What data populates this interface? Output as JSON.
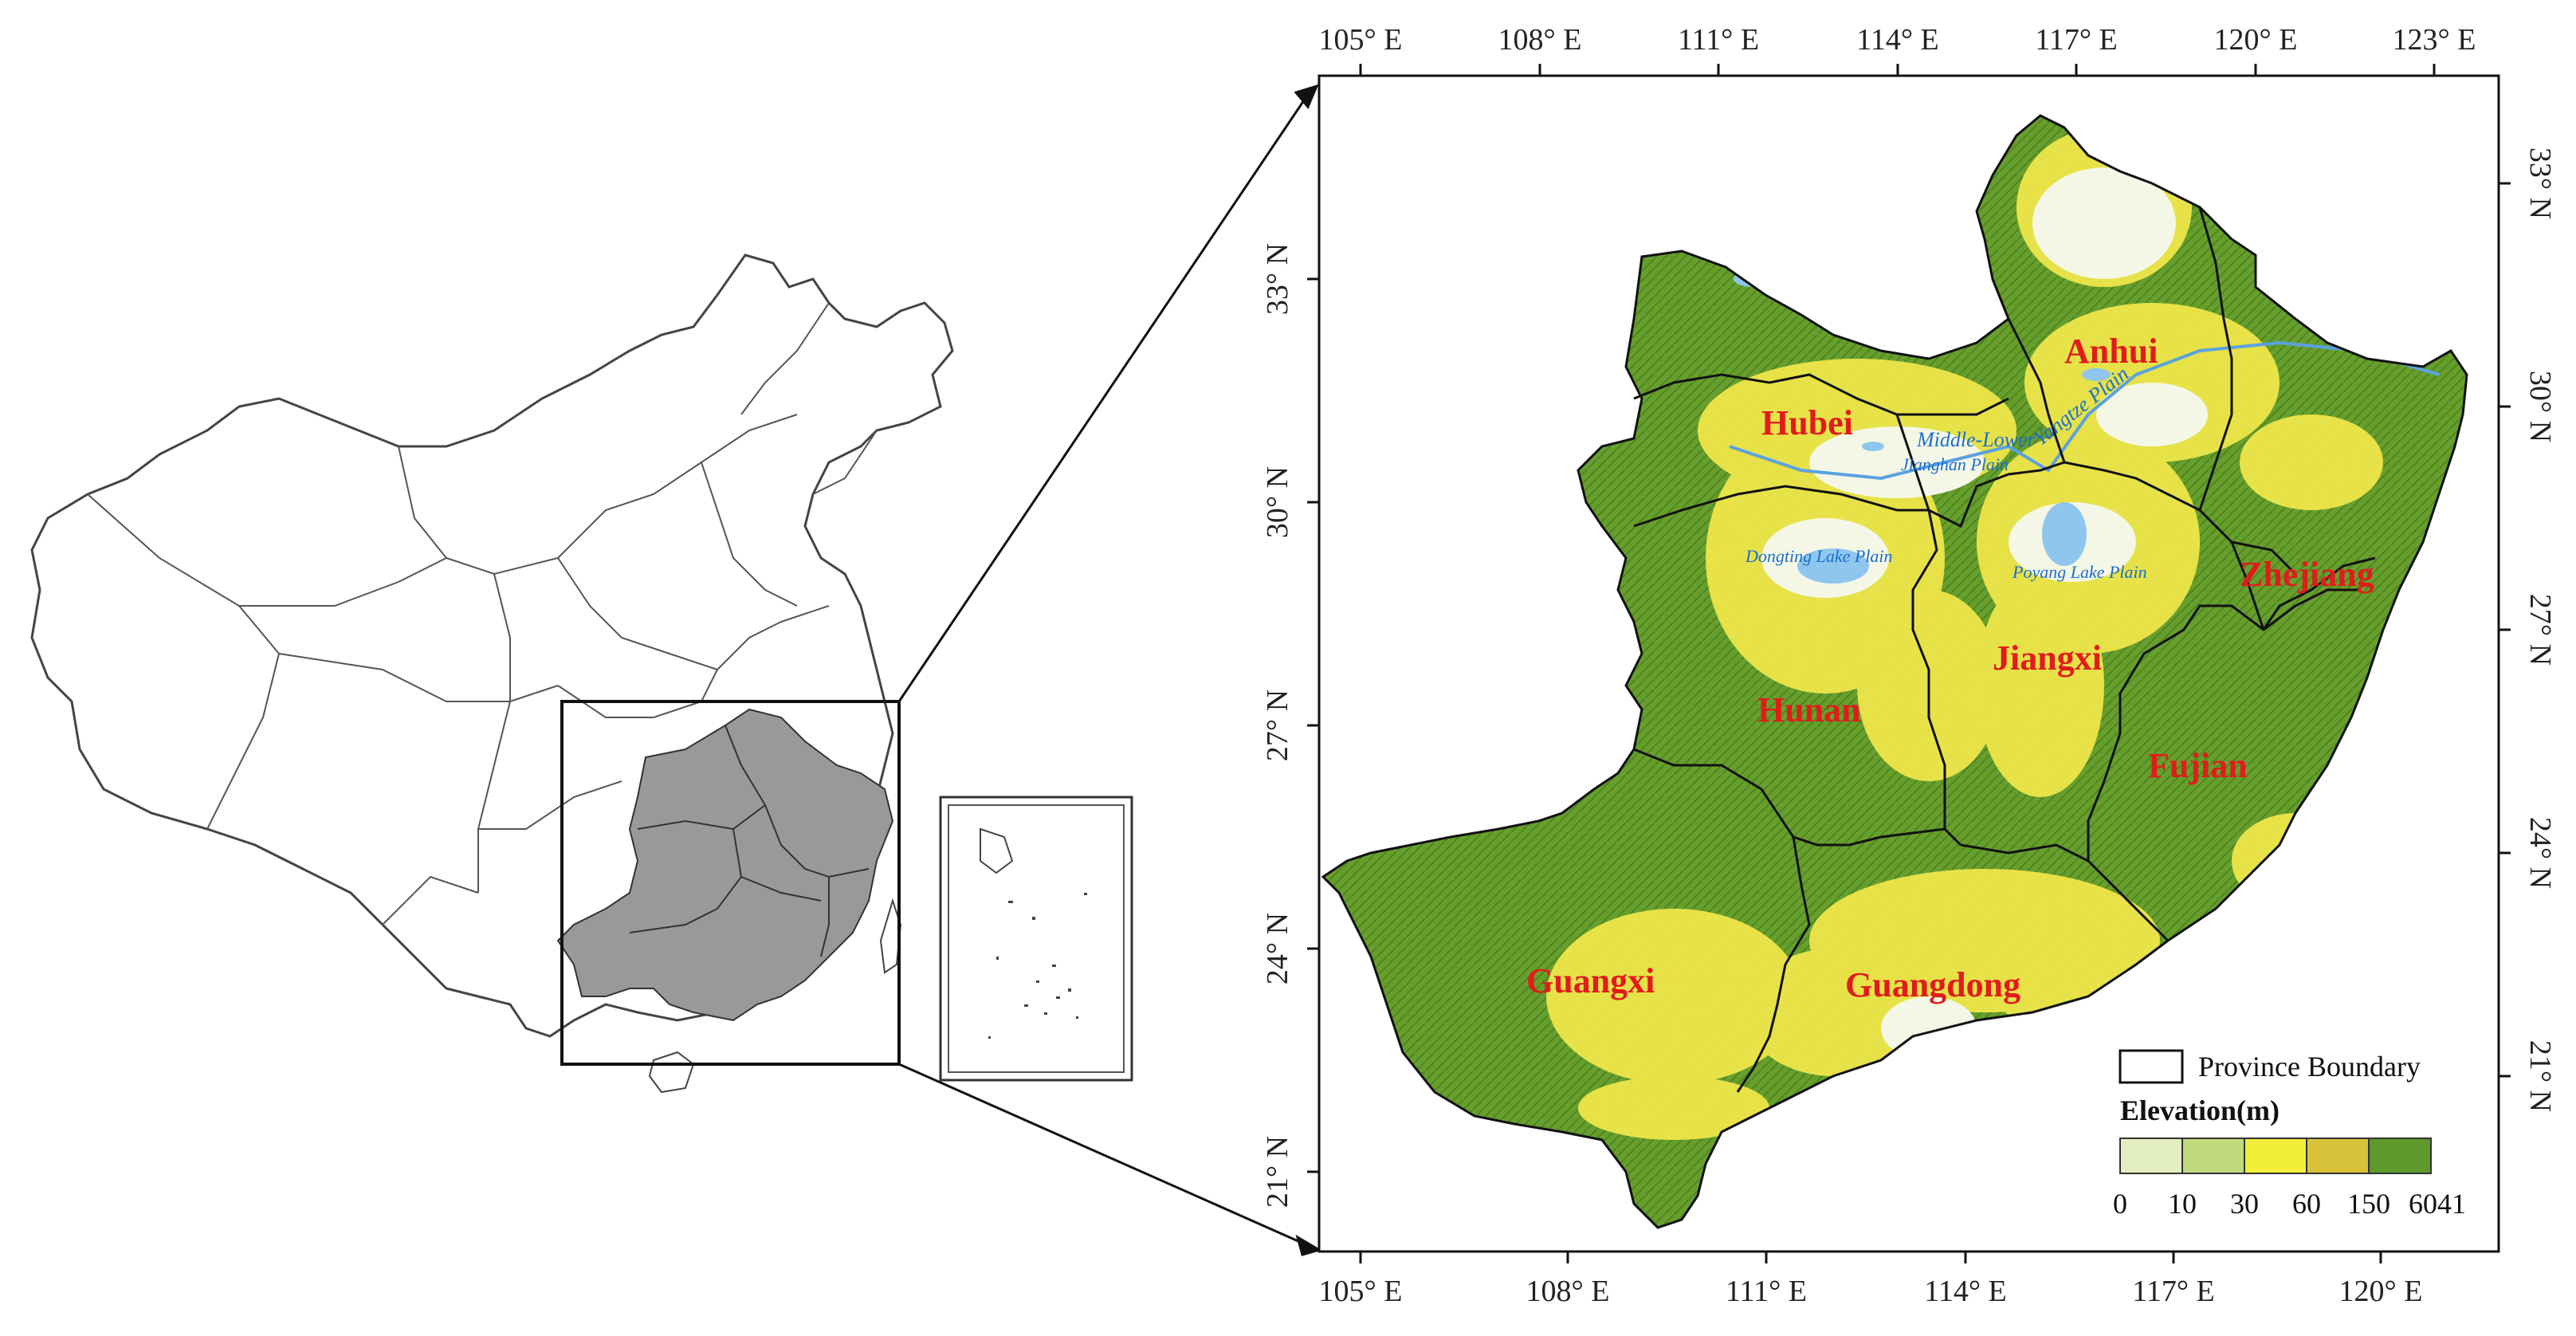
{
  "top_ticks": [
    "105° E",
    "108° E",
    "111° E",
    "114° E",
    "117° E",
    "120° E",
    "123° E"
  ],
  "bottom_ticks": [
    "105° E",
    "108° E",
    "111° E",
    "114° E",
    "117° E",
    "120° E"
  ],
  "left_ticks": [
    "33° N",
    "30° N",
    "27° N",
    "24° N",
    "21° N"
  ],
  "right_ticks": [
    "33° N",
    "30° N",
    "27° N",
    "24° N",
    "21° N"
  ],
  "provinces": {
    "hubei": "Hubei",
    "anhui": "Anhui",
    "hunan": "Hunan",
    "jiangxi": "Jiangxi",
    "zhejiang": "Zhejiang",
    "fujian": "Fujian",
    "guangxi": "Guangxi",
    "guangdong": "Guangdong"
  },
  "plains": {
    "middle_lower": "Middle-Lower",
    "yangtze": "Yangtze Plain",
    "jianghan": "Jianghan Plain",
    "dongting": "Dongting Lake Plain",
    "poyang": "Poyang Lake Plain"
  },
  "legend": {
    "boundary_label": "Province Boundary",
    "elevation_title": "Elevation(m)",
    "classes": [
      "0",
      "10",
      "30",
      "60",
      "150",
      "6041"
    ],
    "colors": [
      "#e4efc1",
      "#bfdb7c",
      "#f2ee3a",
      "#d8c23a",
      "#5f9a2c"
    ]
  },
  "colors": {
    "highland_green": "#679f2c",
    "lowland_yellow": "#eee64a",
    "plain_white": "#f5f7e6",
    "water_blue": "#8fc6ee",
    "selected_gray": "#999999"
  }
}
